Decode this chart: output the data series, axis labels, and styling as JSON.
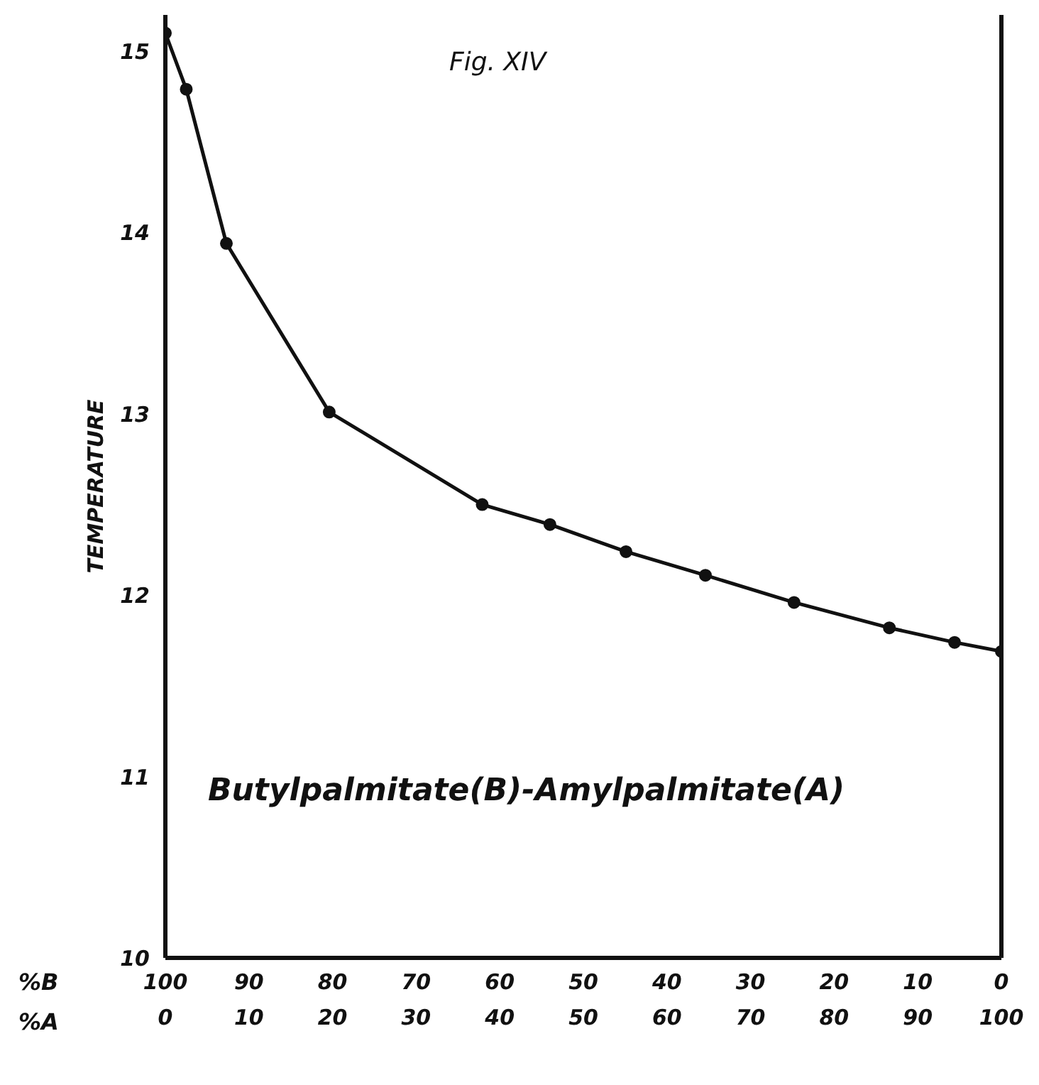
{
  "chart_data": {
    "type": "line",
    "title": "Fig. XIV",
    "ylabel": "TEMPERATURE",
    "xlabel": "%A",
    "x2label": "%B",
    "annotations": [
      "Butylpalmitate(B)-Amylpalmitate(A)"
    ],
    "series": [
      {
        "color": "#111111",
        "x": [
          0,
          2.5,
          7.3,
          19.6,
          37.9,
          46.0,
          55.1,
          64.6,
          75.2,
          86.6,
          94.4,
          100
        ],
        "values": [
          15.1,
          14.79,
          13.94,
          13.01,
          12.5,
          12.39,
          12.24,
          12.11,
          11.96,
          11.82,
          11.74,
          11.69
        ]
      }
    ],
    "marker": "circle",
    "line_style": "solid",
    "grid": false,
    "xlim": [
      0,
      100
    ],
    "xticks": [
      0,
      10,
      20,
      30,
      40,
      50,
      60,
      70,
      80,
      90,
      100
    ],
    "x2lim": [
      100,
      0
    ],
    "x2ticks": [
      100,
      90,
      80,
      70,
      60,
      50,
      40,
      30,
      20,
      10,
      0
    ],
    "ylim": [
      10,
      15.2
    ],
    "yticks": [
      10,
      11,
      12,
      13,
      14,
      15
    ]
  }
}
